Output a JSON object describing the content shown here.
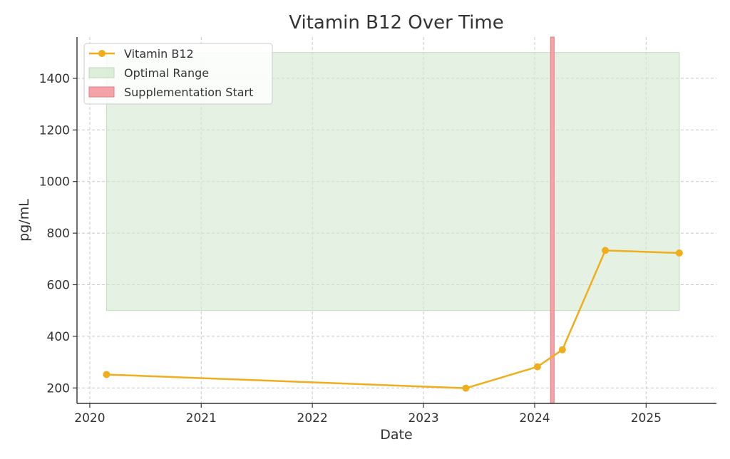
{
  "chart_data": {
    "type": "line",
    "title": "Vitamin B12 Over Time",
    "xlabel": "Date",
    "ylabel": "pg/mL",
    "xlim": [
      "2019-11-20",
      "2025-08-20"
    ],
    "ylim": [
      140,
      1560
    ],
    "x_ticks": [
      {
        "date": "2020-01-01",
        "label": "2020"
      },
      {
        "date": "2021-01-01",
        "label": "2021"
      },
      {
        "date": "2022-01-01",
        "label": "2022"
      },
      {
        "date": "2023-01-01",
        "label": "2023"
      },
      {
        "date": "2024-01-01",
        "label": "2024"
      },
      {
        "date": "2025-01-01",
        "label": "2025"
      }
    ],
    "y_ticks": [
      200,
      400,
      600,
      800,
      1000,
      1200,
      1400
    ],
    "grid": true,
    "legend_position": "top-left",
    "series": [
      {
        "name": "Vitamin B12",
        "color": "#f0ad1c",
        "points": [
          {
            "date": "2020-02-25",
            "value": 252
          },
          {
            "date": "2023-05-20",
            "value": 199
          },
          {
            "date": "2024-01-10",
            "value": 282
          },
          {
            "date": "2024-04-01",
            "value": 348
          },
          {
            "date": "2024-08-20",
            "value": 733
          },
          {
            "date": "2025-04-20",
            "value": 723
          }
        ]
      }
    ],
    "bands": [
      {
        "name": "Optimal Range",
        "color": "#d4ead0",
        "x_start": "2020-02-25",
        "x_end": "2025-04-20",
        "y_low": 500,
        "y_high": 1500
      }
    ],
    "markers": [
      {
        "name": "Supplementation Start",
        "color": "#f4a3a8",
        "x_start": "2024-02-22",
        "x_end": "2024-03-05"
      }
    ]
  }
}
